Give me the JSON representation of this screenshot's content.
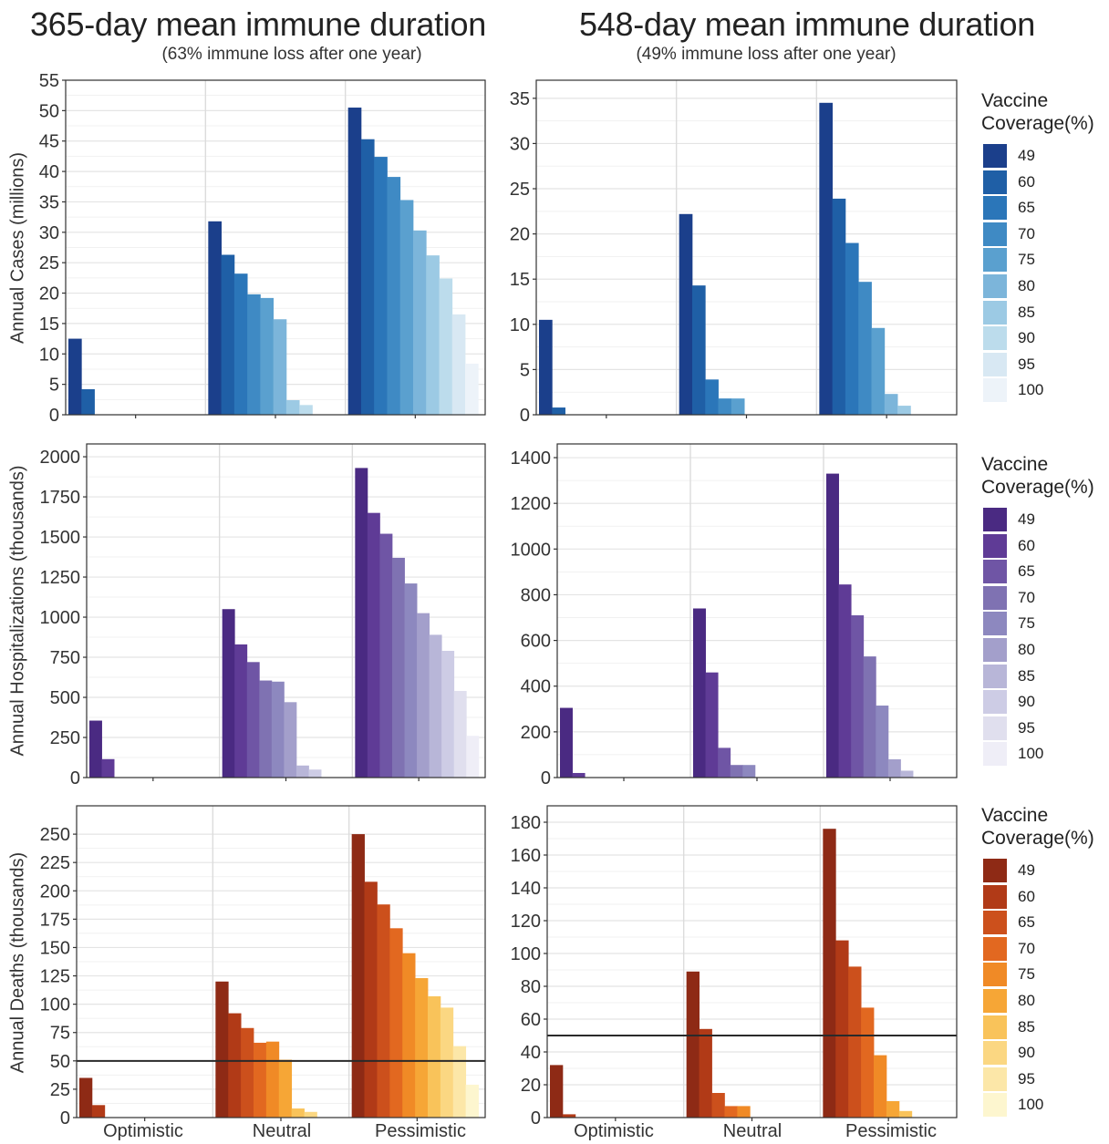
{
  "columns": [
    {
      "title": "365-day mean immune duration",
      "subtitle": "(63% immune loss after one year)"
    },
    {
      "title": "548-day mean immune duration",
      "subtitle": "(49% immune loss after one year)"
    }
  ],
  "x_categories": [
    "Optimistic",
    "Neutral",
    "Pessimistic"
  ],
  "legend": {
    "title_line1": "Vaccine",
    "title_line2": "Coverage(%)",
    "levels": [
      "49",
      "60",
      "65",
      "70",
      "75",
      "80",
      "85",
      "90",
      "95",
      "100"
    ]
  },
  "palettes": {
    "blue": [
      "#1b3f8b",
      "#1f5fa6",
      "#2b76b9",
      "#3f8ac4",
      "#5aa0cf",
      "#7cb5da",
      "#9ccae4",
      "#bcdcec",
      "#d8e8f3",
      "#edf3f9"
    ],
    "purple": [
      "#4a2a82",
      "#5f3b96",
      "#6f55a5",
      "#7f72b2",
      "#8d88bf",
      "#a39fcb",
      "#b8b6d8",
      "#cdcce5",
      "#e0dfee",
      "#efeef7"
    ],
    "orange": [
      "#8e2a15",
      "#b13a17",
      "#cc501c",
      "#e26820",
      "#f08a26",
      "#f6a636",
      "#f9c35a",
      "#fbd782",
      "#fce7a8",
      "#fdf6cf"
    ]
  },
  "chart_data": [
    {
      "type": "bar",
      "ylabel": "Annual Cases (millions)",
      "palette": "blue",
      "ylim": [
        0,
        55
      ],
      "yticks": [
        0,
        5,
        10,
        15,
        20,
        25,
        30,
        35,
        40,
        45,
        50,
        55
      ],
      "categories": [
        "Optimistic",
        "Neutral",
        "Pessimistic"
      ],
      "values": [
        [
          12.5,
          4.2,
          0,
          0,
          0,
          0,
          0,
          0,
          0,
          0
        ],
        [
          31.8,
          26.3,
          23.2,
          19.8,
          19.2,
          15.7,
          2.4,
          1.6,
          0,
          0
        ],
        [
          50.5,
          45.3,
          42.4,
          39.1,
          35.3,
          30.3,
          26.2,
          22.4,
          16.5,
          8.4
        ]
      ]
    },
    {
      "type": "bar",
      "ylabel": "",
      "palette": "blue",
      "ylim": [
        0,
        37
      ],
      "yticks": [
        0,
        5,
        10,
        15,
        20,
        25,
        30,
        35
      ],
      "categories": [
        "Optimistic",
        "Neutral",
        "Pessimistic"
      ],
      "values": [
        [
          10.5,
          0.8,
          0,
          0,
          0,
          0,
          0,
          0,
          0,
          0
        ],
        [
          22.2,
          14.3,
          3.9,
          1.8,
          1.8,
          0,
          0,
          0,
          0,
          0
        ],
        [
          34.5,
          23.9,
          19.0,
          14.7,
          9.6,
          2.3,
          1.0,
          0,
          0,
          0
        ]
      ]
    },
    {
      "type": "bar",
      "ylabel": "Annual Hospitalizations (thousands)",
      "palette": "purple",
      "ylim": [
        0,
        2080
      ],
      "yticks": [
        0,
        250,
        500,
        750,
        1000,
        1250,
        1500,
        1750,
        2000
      ],
      "categories": [
        "Optimistic",
        "Neutral",
        "Pessimistic"
      ],
      "values": [
        [
          355,
          115,
          0,
          0,
          0,
          0,
          0,
          0,
          0,
          0
        ],
        [
          1050,
          830,
          720,
          605,
          598,
          470,
          75,
          50,
          0,
          0
        ],
        [
          1930,
          1650,
          1520,
          1370,
          1210,
          1025,
          890,
          790,
          540,
          260
        ]
      ]
    },
    {
      "type": "bar",
      "ylabel": "",
      "palette": "purple",
      "ylim": [
        0,
        1460
      ],
      "yticks": [
        0,
        200,
        400,
        600,
        800,
        1000,
        1200,
        1400
      ],
      "categories": [
        "Optimistic",
        "Neutral",
        "Pessimistic"
      ],
      "values": [
        [
          305,
          20,
          0,
          0,
          0,
          0,
          0,
          0,
          0,
          0
        ],
        [
          740,
          460,
          130,
          55,
          55,
          0,
          0,
          0,
          0,
          0
        ],
        [
          1330,
          845,
          710,
          530,
          315,
          80,
          30,
          0,
          0,
          0
        ]
      ]
    },
    {
      "type": "bar",
      "ylabel": "Annual Deaths (thousands)",
      "palette": "orange",
      "ylim": [
        0,
        275
      ],
      "yticks": [
        0,
        25,
        50,
        75,
        100,
        125,
        150,
        175,
        200,
        225,
        250
      ],
      "hline": 50,
      "categories": [
        "Optimistic",
        "Neutral",
        "Pessimistic"
      ],
      "values": [
        [
          35,
          11,
          0,
          0,
          0,
          0,
          0,
          0,
          0,
          0
        ],
        [
          120,
          92,
          79,
          66,
          67,
          51,
          8,
          5,
          0,
          0
        ],
        [
          250,
          208,
          188,
          167,
          145,
          123,
          107,
          97,
          63,
          29
        ]
      ]
    },
    {
      "type": "bar",
      "ylabel": "",
      "palette": "orange",
      "ylim": [
        0,
        190
      ],
      "yticks": [
        0,
        20,
        40,
        60,
        80,
        100,
        120,
        140,
        160,
        180
      ],
      "hline": 50,
      "categories": [
        "Optimistic",
        "Neutral",
        "Pessimistic"
      ],
      "values": [
        [
          32,
          2,
          0,
          0,
          0,
          0,
          0,
          0,
          0,
          0
        ],
        [
          89,
          54,
          15,
          7,
          7,
          0,
          0,
          0,
          0,
          0
        ],
        [
          176,
          108,
          92,
          67,
          38,
          10,
          4,
          0,
          0,
          0
        ]
      ]
    }
  ]
}
